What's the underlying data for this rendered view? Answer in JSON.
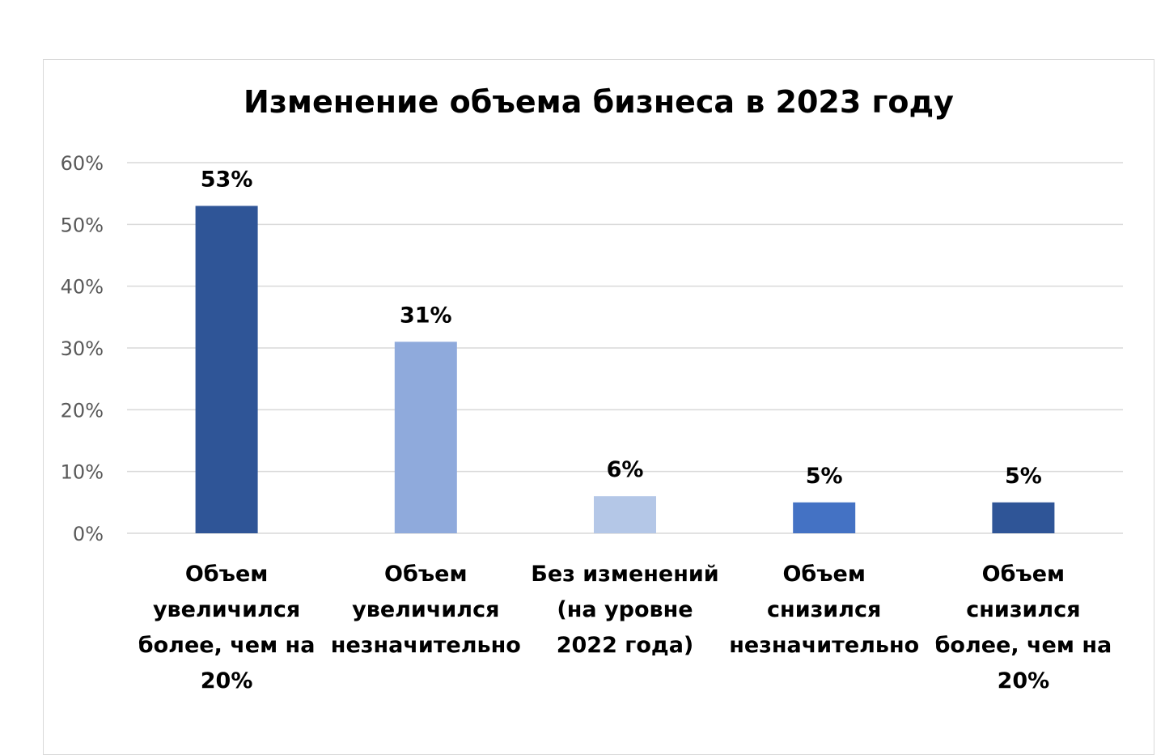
{
  "chart_data": {
    "type": "bar",
    "title": "Изменение объема бизнеса в 2023 году",
    "categories": [
      "Объем увеличился более, чем на 20%",
      "Объем увеличился незначительно",
      "Без изменений (на уровне 2022 года)",
      "Объем снизился незначительно",
      "Объем снизился более, чем на 20%"
    ],
    "values": [
      53,
      31,
      6,
      5,
      5
    ],
    "data_labels": [
      "53%",
      "31%",
      "6%",
      "5%",
      "5%"
    ],
    "bar_colors": [
      "#2f5597",
      "#8faadc",
      "#b4c7e7",
      "#4472c4",
      "#2f5597"
    ],
    "ylim": [
      0,
      60
    ],
    "yticks": [
      "0%",
      "10%",
      "20%",
      "30%",
      "40%",
      "50%",
      "60%"
    ],
    "grid": true,
    "xlabel": "",
    "ylabel": ""
  }
}
